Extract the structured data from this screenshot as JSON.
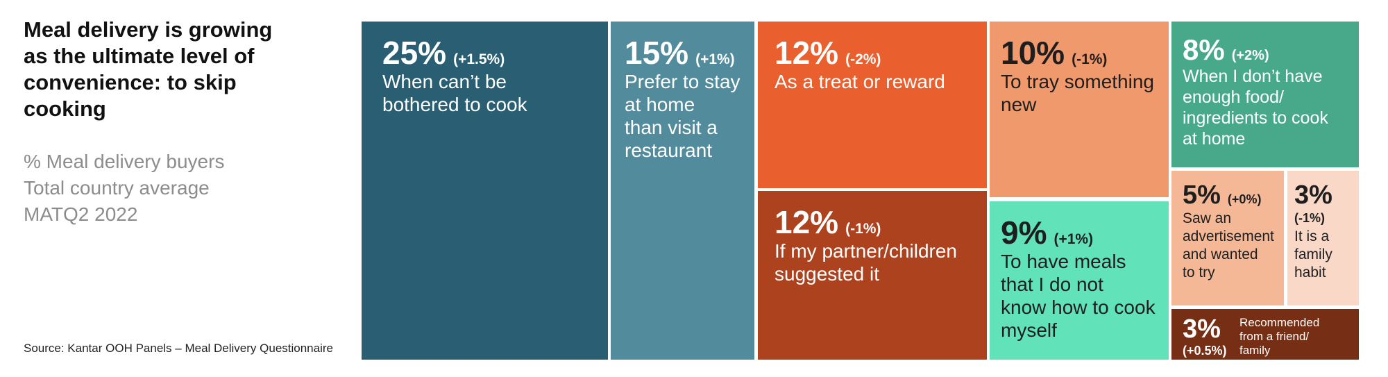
{
  "title_lines": [
    "Meal delivery is growing",
    "as the ultimate level of",
    "convenience: to skip",
    "cooking"
  ],
  "subtitle_lines": [
    "% Meal delivery buyers",
    "Total country average",
    "MATQ2 2022"
  ],
  "source": "Source: Kantar OOH Panels – Meal Delivery Questionnaire",
  "chart_data": {
    "type": "treemap",
    "unit": "%",
    "items": [
      {
        "value": 25,
        "value_label": "25%",
        "change": "(+1.5%)",
        "label_lines": [
          "When can’t be",
          "bothered to cook"
        ],
        "color": "#2a5f73",
        "text_color": "#ffffff"
      },
      {
        "value": 15,
        "value_label": "15%",
        "change": "(+1%)",
        "label_lines": [
          "Prefer to stay",
          "at home",
          "than visit a",
          "restaurant"
        ],
        "color": "#528b9b",
        "text_color": "#ffffff"
      },
      {
        "value": 12,
        "value_label": "12%",
        "change": "(-2%)",
        "label_lines": [
          "As a treat or reward"
        ],
        "color": "#e95f2e",
        "text_color": "#ffffff"
      },
      {
        "value": 12,
        "value_label": "12%",
        "change": "(-1%)",
        "label_lines": [
          "If my partner/children",
          "suggested it"
        ],
        "color": "#ad421f",
        "text_color": "#ffffff"
      },
      {
        "value": 10,
        "value_label": "10%",
        "change": "(-1%)",
        "label_lines": [
          "To tray something",
          "new"
        ],
        "color": "#f0996d",
        "text_color": "#1e1e1e"
      },
      {
        "value": 9,
        "value_label": "9%",
        "change": "(+1%)",
        "label_lines": [
          "To have meals",
          "that I do not",
          "know how to cook",
          "myself"
        ],
        "color": "#62e2b8",
        "text_color": "#1e1e1e"
      },
      {
        "value": 8,
        "value_label": "8%",
        "change": "(+2%)",
        "label_lines": [
          "When I don’t have",
          "enough food/",
          "ingredients to cook",
          "at home"
        ],
        "color": "#48a88a",
        "text_color": "#ffffff"
      },
      {
        "value": 5,
        "value_label": "5%",
        "change": "(+0%)",
        "label_lines": [
          "Saw an",
          "advertisement",
          "and wanted",
          "to try"
        ],
        "color": "#f4b897",
        "text_color": "#1e1e1e"
      },
      {
        "value": 3,
        "value_label": "3%",
        "change": "(-1%)",
        "label_lines": [
          "It is a",
          "family",
          "habit"
        ],
        "color": "#f9d8c8",
        "text_color": "#1e1e1e"
      },
      {
        "value": 3,
        "value_label": "3%",
        "change": "(+0.5%)",
        "label_lines": [
          "Recommended",
          "from a friend/",
          "family"
        ],
        "color": "#762e14",
        "text_color": "#ffffff"
      }
    ]
  }
}
